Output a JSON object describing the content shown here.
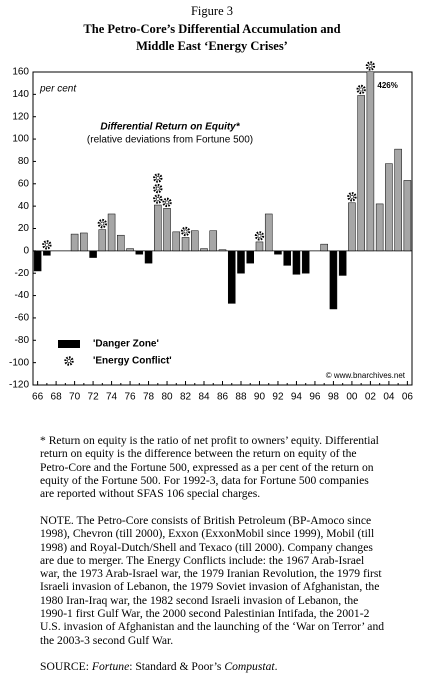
{
  "chart_data": {
    "type": "bar",
    "figure_label": "Figure 3",
    "title": [
      "The Petro-Core’s Differential Accumulation and",
      "Middle East ‘Energy Crises’"
    ],
    "unit_label": "per cent",
    "annotation": [
      "Differential Return on Equity*",
      "(relative deviations from Fortune 500)"
    ],
    "credit": "© www.bnarchives.net",
    "categories": [
      "66",
      null,
      "68",
      null,
      "70",
      null,
      "72",
      null,
      "74",
      null,
      "76",
      null,
      "78",
      null,
      "80",
      null,
      "82",
      null,
      "84",
      null,
      "86",
      null,
      "88",
      null,
      "90",
      null,
      "92",
      null,
      "94",
      null,
      "96",
      null,
      "98",
      null,
      "00",
      null,
      "02",
      null,
      "04",
      null,
      "06"
    ],
    "values": [
      -18,
      -4,
      0,
      0,
      15,
      16,
      -6,
      19,
      33,
      14,
      2,
      -3,
      -11,
      41,
      38,
      17,
      12,
      18,
      2,
      18,
      1,
      -47,
      -20,
      -11,
      8,
      33,
      -3,
      -13,
      -21,
      -20,
      0,
      6,
      -52,
      -22,
      43,
      139,
      426,
      42,
      78,
      91,
      63
    ],
    "value_labels": [
      null,
      null,
      null,
      null,
      null,
      null,
      null,
      null,
      null,
      null,
      null,
      null,
      null,
      null,
      null,
      null,
      null,
      null,
      null,
      null,
      null,
      null,
      null,
      null,
      null,
      null,
      null,
      null,
      null,
      null,
      null,
      null,
      null,
      null,
      null,
      null,
      "426%",
      null,
      null,
      null,
      null
    ],
    "conflict_markers": [
      0,
      1,
      0,
      0,
      0,
      0,
      0,
      1,
      0,
      0,
      0,
      0,
      0,
      3,
      1,
      0,
      1,
      0,
      0,
      0,
      0,
      0,
      0,
      0,
      1,
      0,
      0,
      0,
      0,
      0,
      0,
      0,
      0,
      0,
      1,
      1,
      1,
      0,
      0,
      0,
      0
    ],
    "colors": {
      "positive": "#a6a6a6",
      "negative": "#000000"
    },
    "ylim": [
      -120,
      160
    ],
    "yticks": [
      -120,
      -100,
      -80,
      -60,
      -40,
      -20,
      0,
      20,
      40,
      60,
      80,
      100,
      120,
      140,
      160
    ],
    "legend": [
      "'Danger Zone'",
      "'Energy Conflict'"
    ]
  },
  "notes": {
    "footnote": "* Return on equity is the ratio of net profit to owners’ equity. Differential return on equity is the difference between the return on equity of the Petro-Core and the Fortune 500, expressed as a per cent of the return on equity of the Fortune 500. For 1992-3, data for Fortune 500 companies are reported without SFAS 106 special charges.",
    "note": "NOTE. The Petro-Core consists of British Petroleum (BP-Amoco since 1998), Chevron (till 2000), Exxon (ExxonMobil since 1999), Mobil (till 1998) and Royal-Dutch/Shell and Texaco (till 2000). Company changes are due to merger. The Energy Conflicts include: the 1967 Arab-Israel war, the 1973 Arab-Israel war, the 1979 Iranian Revolution, the 1979 first Israeli invasion of Lebanon, the 1979 Soviet invasion of Afghanistan, the 1980 Iran-Iraq war, the 1982 second Israeli invasion of Lebanon, the 1990-1 first Gulf War, the 2000 second Palestinian Intifada, the 2001-2 U.S. invasion of Afghanistan and the launching of the ‘War on Terror’ and the 2003-3 second Gulf War.",
    "source": [
      "SOURCE: ",
      "Fortune",
      ": Standard & Poor’s ",
      "Compustat",
      "."
    ]
  }
}
